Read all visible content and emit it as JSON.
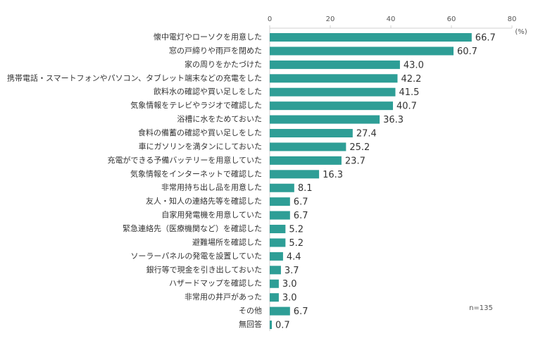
{
  "chart_data": {
    "type": "bar",
    "orientation": "horizontal",
    "unit_label": "(%)",
    "note": "n=135",
    "categories": [
      "懐中電灯やローソクを用意した",
      "窓の戸締りや雨戸を閉めた",
      "家の周りをかたづけた",
      "携帯電話・スマートフォンやパソコン、タブレット端末などの充電をした",
      "飲料水の確認や買い足しをした",
      "気象情報をテレビやラジオで確認した",
      "浴槽に水をためておいた",
      "食料の備蓄の確認や買い足しをした",
      "車にガソリンを満タンにしておいた",
      "充電ができる予備バッテリーを用意していた",
      "気象情報をインターネットで確認した",
      "非常用持ち出し品を用意した",
      "友人・知人の連絡先等を確認した",
      "自家用発電機を用意していた",
      "緊急連絡先（医療機関など）を確認した",
      "避難場所を確認した",
      "ソーラーパネルの発電を設置していた",
      "銀行等で現金を引き出しておいた",
      "ハザードマップを確認した",
      "非常用の井戸があった",
      "その他",
      "無回答"
    ],
    "values": [
      66.7,
      60.7,
      43.0,
      42.2,
      41.5,
      40.7,
      36.3,
      27.4,
      25.2,
      23.7,
      16.3,
      8.1,
      6.7,
      6.7,
      5.2,
      5.2,
      4.4,
      3.7,
      3.0,
      3.0,
      6.7,
      0.7
    ],
    "value_labels": [
      "66.7",
      "60.7",
      "43.0",
      "42.2",
      "41.5",
      "40.7",
      "36.3",
      "27.4",
      "25.2",
      "23.7",
      "16.3",
      "8.1",
      "6.7",
      "6.7",
      "5.2",
      "5.2",
      "4.4",
      "3.7",
      "3.0",
      "3.0",
      "6.7",
      "0.7"
    ],
    "color": "#2e9e96",
    "xlim": [
      0,
      80
    ],
    "xticks": [
      0,
      20,
      40,
      60,
      80
    ],
    "grid": false
  }
}
